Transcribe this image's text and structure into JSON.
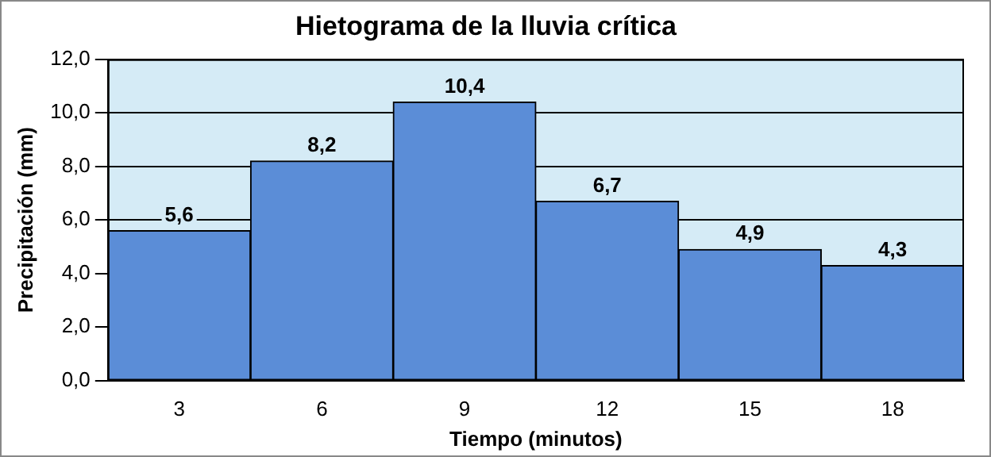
{
  "chart_data": {
    "type": "bar",
    "title": "Hietograma de la lluvia crítica",
    "xlabel": "Tiempo (minutos)",
    "ylabel": "Precipitación (mm)",
    "categories": [
      "3",
      "6",
      "9",
      "12",
      "15",
      "18"
    ],
    "values": [
      5.6,
      8.2,
      10.4,
      6.7,
      4.9,
      4.3
    ],
    "value_labels": [
      "5,6",
      "8,2",
      "10,4",
      "6,7",
      "4,9",
      "4,3"
    ],
    "color": "#5b8dd7",
    "ylim": [
      0,
      12
    ],
    "yticks": [
      {
        "value": 0,
        "label": "0,0"
      },
      {
        "value": 2,
        "label": "2,0"
      },
      {
        "value": 4,
        "label": "4,0"
      },
      {
        "value": 6,
        "label": "6,0"
      },
      {
        "value": 8,
        "label": "8,0"
      },
      {
        "value": 10,
        "label": "10,0"
      },
      {
        "value": 12,
        "label": "12,0"
      }
    ],
    "grid": "y",
    "legend": false
  }
}
